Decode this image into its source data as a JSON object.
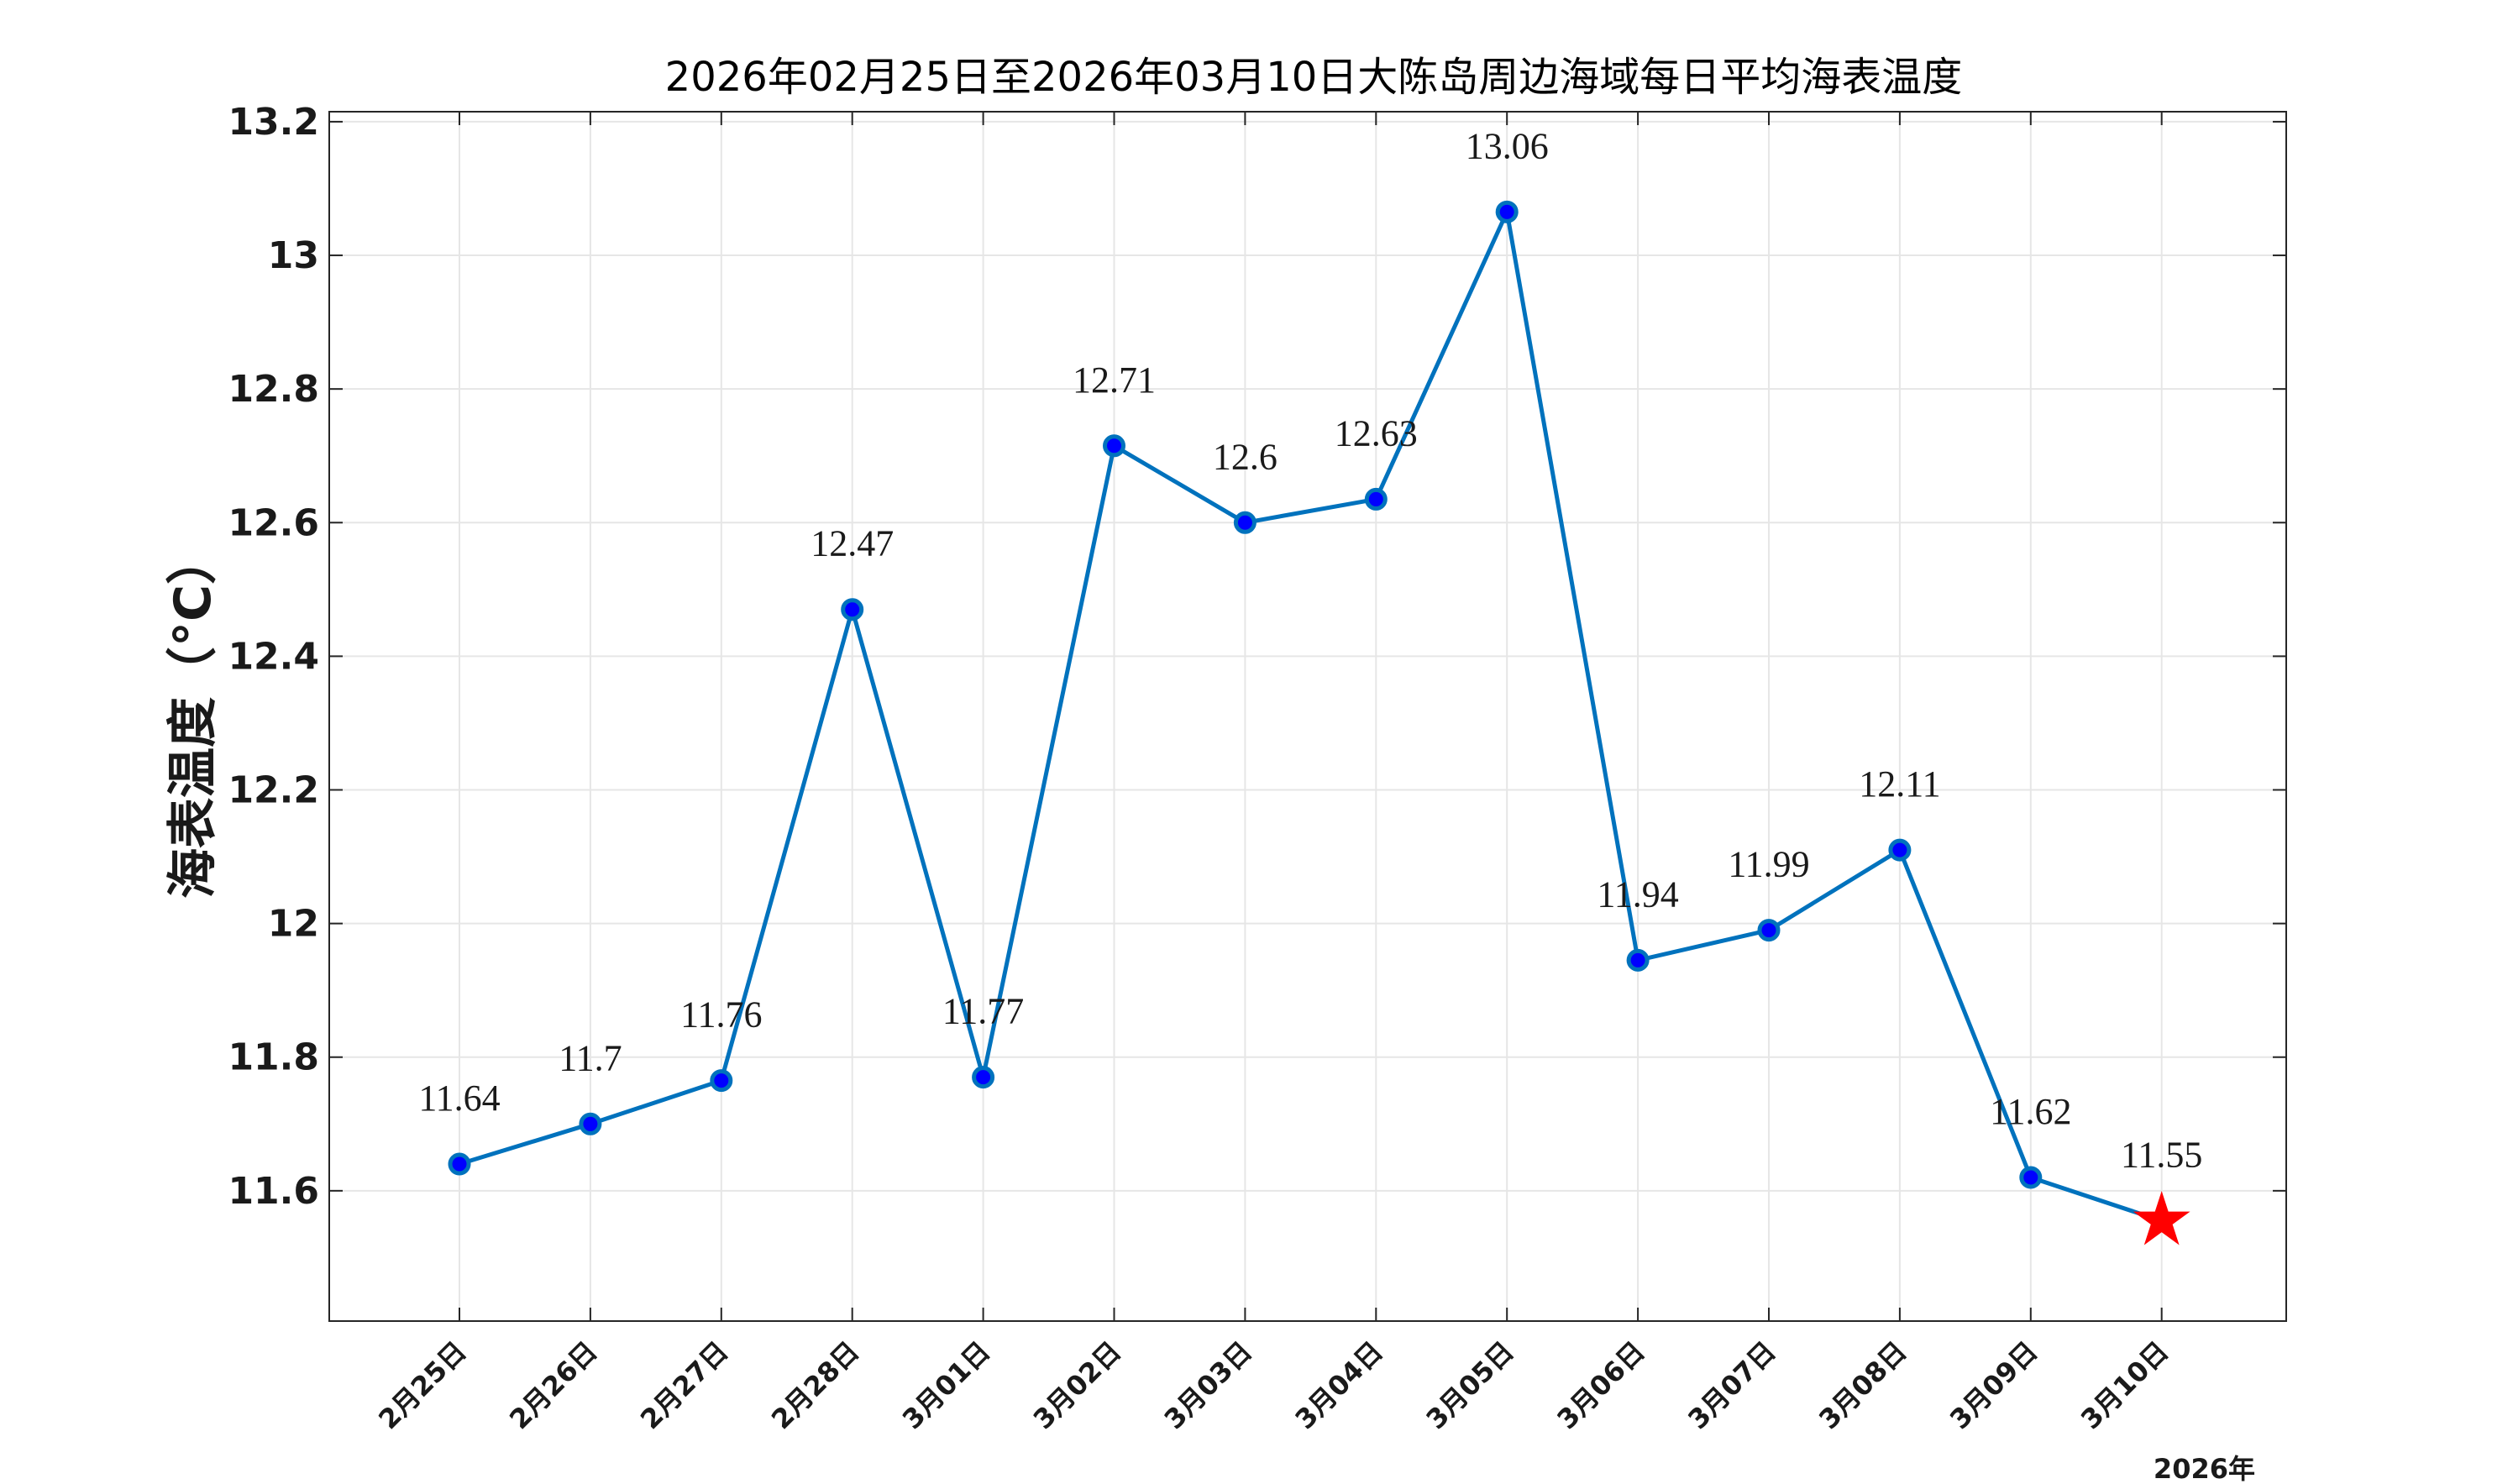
{
  "chart_data": {
    "type": "line",
    "title": "2026年02月25日至2026年03月10日大陈岛周边海域每日平均海表温度",
    "ylabel": "海表温度（°C）",
    "xlabel": "",
    "year_label": "2026年",
    "categories": [
      "2月25日",
      "2月26日",
      "2月27日",
      "2月28日",
      "3月01日",
      "3月02日",
      "3月03日",
      "3月04日",
      "3月05日",
      "3月06日",
      "3月07日",
      "3月08日",
      "3月09日",
      "3月10日"
    ],
    "values": [
      11.64,
      11.7,
      11.765,
      12.47,
      11.77,
      12.715,
      12.6,
      12.635,
      13.065,
      11.945,
      11.99,
      12.11,
      11.62,
      11.555
    ],
    "data_labels": [
      "11.64",
      "11.7",
      "11.76",
      "12.47",
      "11.77",
      "12.71",
      "12.6",
      "12.63",
      "13.06",
      "11.94",
      "11.99",
      "12.11",
      "11.62",
      "11.55"
    ],
    "ylim": [
      11.405,
      13.215
    ],
    "yticks": [
      11.6,
      11.8,
      12,
      12.2,
      12.4,
      12.6,
      12.8,
      13,
      13.2
    ],
    "ytick_labels": [
      "11.6",
      "11.8",
      "12",
      "12.2",
      "12.4",
      "12.6",
      "12.8",
      "13",
      "13.2"
    ],
    "grid": true,
    "colors": {
      "line": "#0072BD",
      "marker_fill": "#0000FF",
      "marker_edge": "#0072BD",
      "highlight": "#FF0000"
    },
    "highlight_last": "red-star"
  }
}
